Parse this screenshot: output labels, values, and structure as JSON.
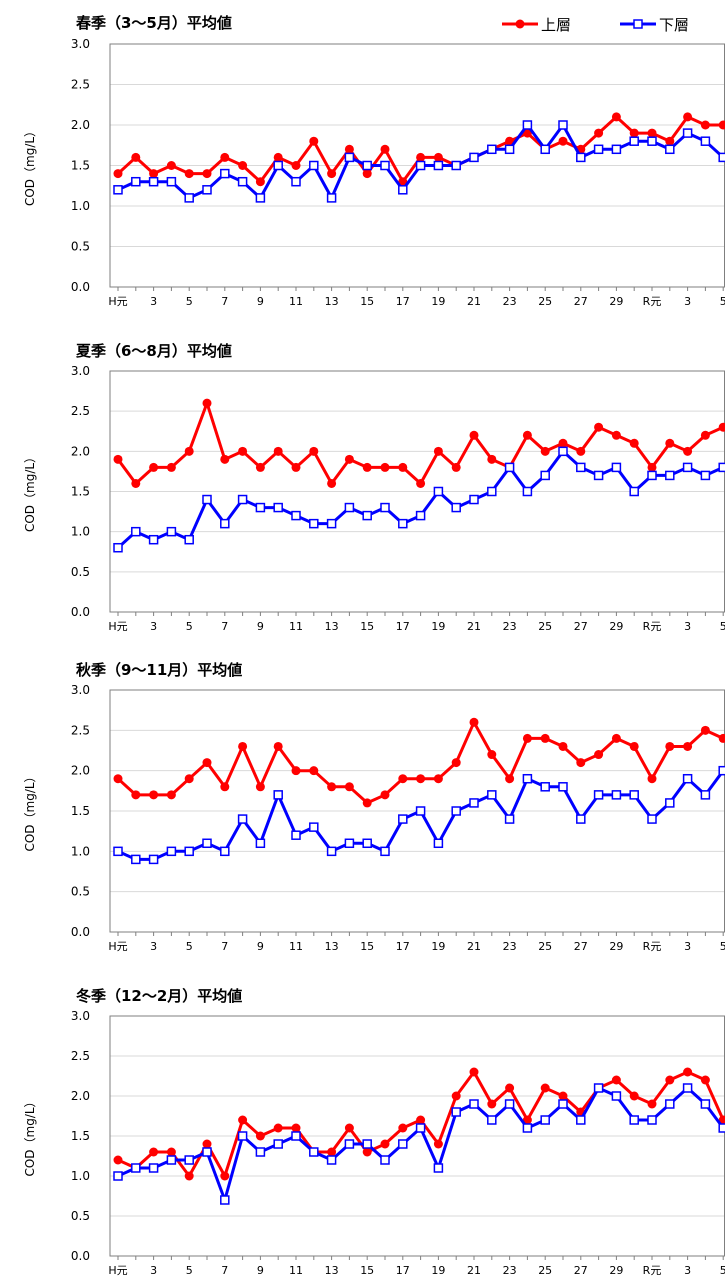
{
  "legend": {
    "upper_label": "上層",
    "lower_label": "下層",
    "upper_color": "#ff0000",
    "lower_color": "#0000ff"
  },
  "chart_data": [
    {
      "type": "line",
      "title": "春季（3～5月）平均値",
      "ylabel": "COD（mg/L）",
      "ylim": [
        0,
        3.0
      ],
      "yticks": [
        "0.0",
        "0.5",
        "1.0",
        "1.5",
        "2.0",
        "2.5",
        "3.0"
      ],
      "xtick_labels": [
        "H元",
        "3",
        "5",
        "7",
        "9",
        "11",
        "13",
        "15",
        "17",
        "19",
        "21",
        "23",
        "25",
        "27",
        "29",
        "R元",
        "3",
        "5"
      ],
      "series": [
        {
          "name": "上層",
          "values": [
            1.4,
            1.6,
            1.4,
            1.5,
            1.4,
            1.4,
            1.6,
            1.5,
            1.3,
            1.6,
            1.5,
            1.8,
            1.4,
            1.7,
            1.4,
            1.7,
            1.3,
            1.6,
            1.6,
            1.5,
            1.6,
            1.7,
            1.8,
            1.9,
            1.7,
            1.8,
            1.7,
            1.9,
            2.1,
            1.9,
            1.9,
            1.8,
            2.1,
            2.0,
            2.0
          ]
        },
        {
          "name": "下層",
          "values": [
            1.2,
            1.3,
            1.3,
            1.3,
            1.1,
            1.2,
            1.4,
            1.3,
            1.1,
            1.5,
            1.3,
            1.5,
            1.1,
            1.6,
            1.5,
            1.5,
            1.2,
            1.5,
            1.5,
            1.5,
            1.6,
            1.7,
            1.7,
            2.0,
            1.7,
            2.0,
            1.6,
            1.7,
            1.7,
            1.8,
            1.8,
            1.7,
            1.9,
            1.8,
            1.6
          ]
        }
      ]
    },
    {
      "type": "line",
      "title": "夏季（6～8月）平均値",
      "ylabel": "COD（mg/L）",
      "ylim": [
        0,
        3.0
      ],
      "yticks": [
        "0.0",
        "0.5",
        "1.0",
        "1.5",
        "2.0",
        "2.5",
        "3.0"
      ],
      "xtick_labels": [
        "H元",
        "3",
        "5",
        "7",
        "9",
        "11",
        "13",
        "15",
        "17",
        "19",
        "21",
        "23",
        "25",
        "27",
        "29",
        "R元",
        "3",
        "5"
      ],
      "series": [
        {
          "name": "上層",
          "values": [
            1.9,
            1.6,
            1.8,
            1.8,
            2.0,
            2.6,
            1.9,
            2.0,
            1.8,
            2.0,
            1.8,
            2.0,
            1.6,
            1.9,
            1.8,
            1.8,
            1.8,
            1.6,
            2.0,
            1.8,
            2.2,
            1.9,
            1.8,
            2.2,
            2.0,
            2.1,
            2.0,
            2.3,
            2.2,
            2.1,
            1.8,
            2.1,
            2.0,
            2.2,
            2.3
          ]
        },
        {
          "name": "下層",
          "values": [
            0.8,
            1.0,
            0.9,
            1.0,
            0.9,
            1.4,
            1.1,
            1.4,
            1.3,
            1.3,
            1.2,
            1.1,
            1.1,
            1.3,
            1.2,
            1.3,
            1.1,
            1.2,
            1.5,
            1.3,
            1.4,
            1.5,
            1.8,
            1.5,
            1.7,
            2.0,
            1.8,
            1.7,
            1.8,
            1.5,
            1.7,
            1.7,
            1.8,
            1.7,
            1.8
          ]
        }
      ]
    },
    {
      "type": "line",
      "title": "秋季（9～11月）平均値",
      "ylabel": "COD（mg/L）",
      "ylim": [
        0,
        3.0
      ],
      "yticks": [
        "0.0",
        "0.5",
        "1.0",
        "1.5",
        "2.0",
        "2.5",
        "3.0"
      ],
      "xtick_labels": [
        "H元",
        "3",
        "5",
        "7",
        "9",
        "11",
        "13",
        "15",
        "17",
        "19",
        "21",
        "23",
        "25",
        "27",
        "29",
        "R元",
        "3",
        "5"
      ],
      "series": [
        {
          "name": "上層",
          "values": [
            1.9,
            1.7,
            1.7,
            1.7,
            1.9,
            2.1,
            1.8,
            2.3,
            1.8,
            2.3,
            2.0,
            2.0,
            1.8,
            1.8,
            1.6,
            1.7,
            1.9,
            1.9,
            1.9,
            2.1,
            2.6,
            2.2,
            1.9,
            2.4,
            2.4,
            2.3,
            2.1,
            2.2,
            2.4,
            2.3,
            1.9,
            2.3,
            2.3,
            2.5,
            2.4
          ]
        },
        {
          "name": "下層",
          "values": [
            1.0,
            0.9,
            0.9,
            1.0,
            1.0,
            1.1,
            1.0,
            1.4,
            1.1,
            1.7,
            1.2,
            1.3,
            1.0,
            1.1,
            1.1,
            1.0,
            1.4,
            1.5,
            1.1,
            1.5,
            1.6,
            1.7,
            1.4,
            1.9,
            1.8,
            1.8,
            1.4,
            1.7,
            1.7,
            1.7,
            1.4,
            1.6,
            1.9,
            1.7,
            2.0
          ]
        }
      ]
    },
    {
      "type": "line",
      "title": "冬季（12～2月）平均値",
      "ylabel": "COD（mg/L）",
      "ylim": [
        0,
        3.0
      ],
      "yticks": [
        "0.0",
        "0.5",
        "1.0",
        "1.5",
        "2.0",
        "2.5",
        "3.0"
      ],
      "xtick_labels": [
        "H元",
        "3",
        "5",
        "7",
        "9",
        "11",
        "13",
        "15",
        "17",
        "19",
        "21",
        "23",
        "25",
        "27",
        "29",
        "R元",
        "3",
        "5"
      ],
      "series": [
        {
          "name": "上層",
          "values": [
            1.2,
            1.1,
            1.3,
            1.3,
            1.0,
            1.4,
            1.0,
            1.7,
            1.5,
            1.6,
            1.6,
            1.3,
            1.3,
            1.6,
            1.3,
            1.4,
            1.6,
            1.7,
            1.4,
            2.0,
            2.3,
            1.9,
            2.1,
            1.7,
            2.1,
            2.0,
            1.8,
            2.1,
            2.2,
            2.0,
            1.9,
            2.2,
            2.3,
            2.2,
            1.7
          ]
        },
        {
          "name": "下層",
          "values": [
            1.0,
            1.1,
            1.1,
            1.2,
            1.2,
            1.3,
            0.7,
            1.5,
            1.3,
            1.4,
            1.5,
            1.3,
            1.2,
            1.4,
            1.4,
            1.2,
            1.4,
            1.6,
            1.1,
            1.8,
            1.9,
            1.7,
            1.9,
            1.6,
            1.7,
            1.9,
            1.7,
            2.1,
            2.0,
            1.7,
            1.7,
            1.9,
            2.1,
            1.9,
            1.6
          ]
        }
      ]
    }
  ]
}
